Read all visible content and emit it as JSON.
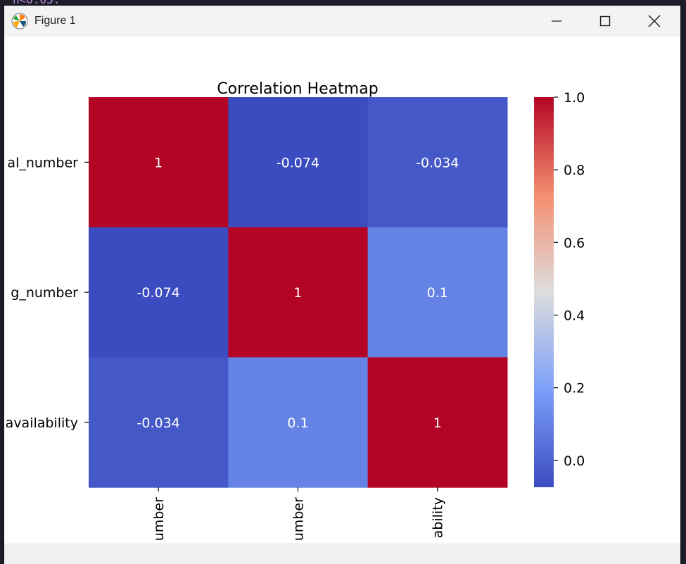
{
  "window": {
    "title": "Figure 1"
  },
  "background_code": "n<0.05:",
  "colors": {
    "cold": "#3b4cc0",
    "warm": "#b40426",
    "title_bar": "#f3f3f3"
  },
  "colormap": "coolwarm",
  "chart_data": {
    "type": "heatmap",
    "title": "Correlation Heatmap",
    "row_labels": [
      "al_number",
      "g_number",
      "availability"
    ],
    "col_labels": [
      "umber",
      "umber",
      "ability"
    ],
    "values": [
      [
        1,
        -0.074,
        -0.034
      ],
      [
        -0.074,
        1,
        0.1
      ],
      [
        -0.034,
        0.1,
        1
      ]
    ],
    "cell_labels": [
      [
        "1",
        "-0.074",
        "-0.034"
      ],
      [
        "-0.074",
        "1",
        "0.1"
      ],
      [
        "-0.034",
        "0.1",
        "1"
      ]
    ],
    "colorbar": {
      "min": -0.074,
      "max": 1.0,
      "ticks": [
        0.0,
        0.2,
        0.4,
        0.6,
        0.8,
        1.0
      ],
      "tick_labels": [
        "0.0",
        "0.2",
        "0.4",
        "0.6",
        "0.8",
        "1.0"
      ]
    }
  }
}
